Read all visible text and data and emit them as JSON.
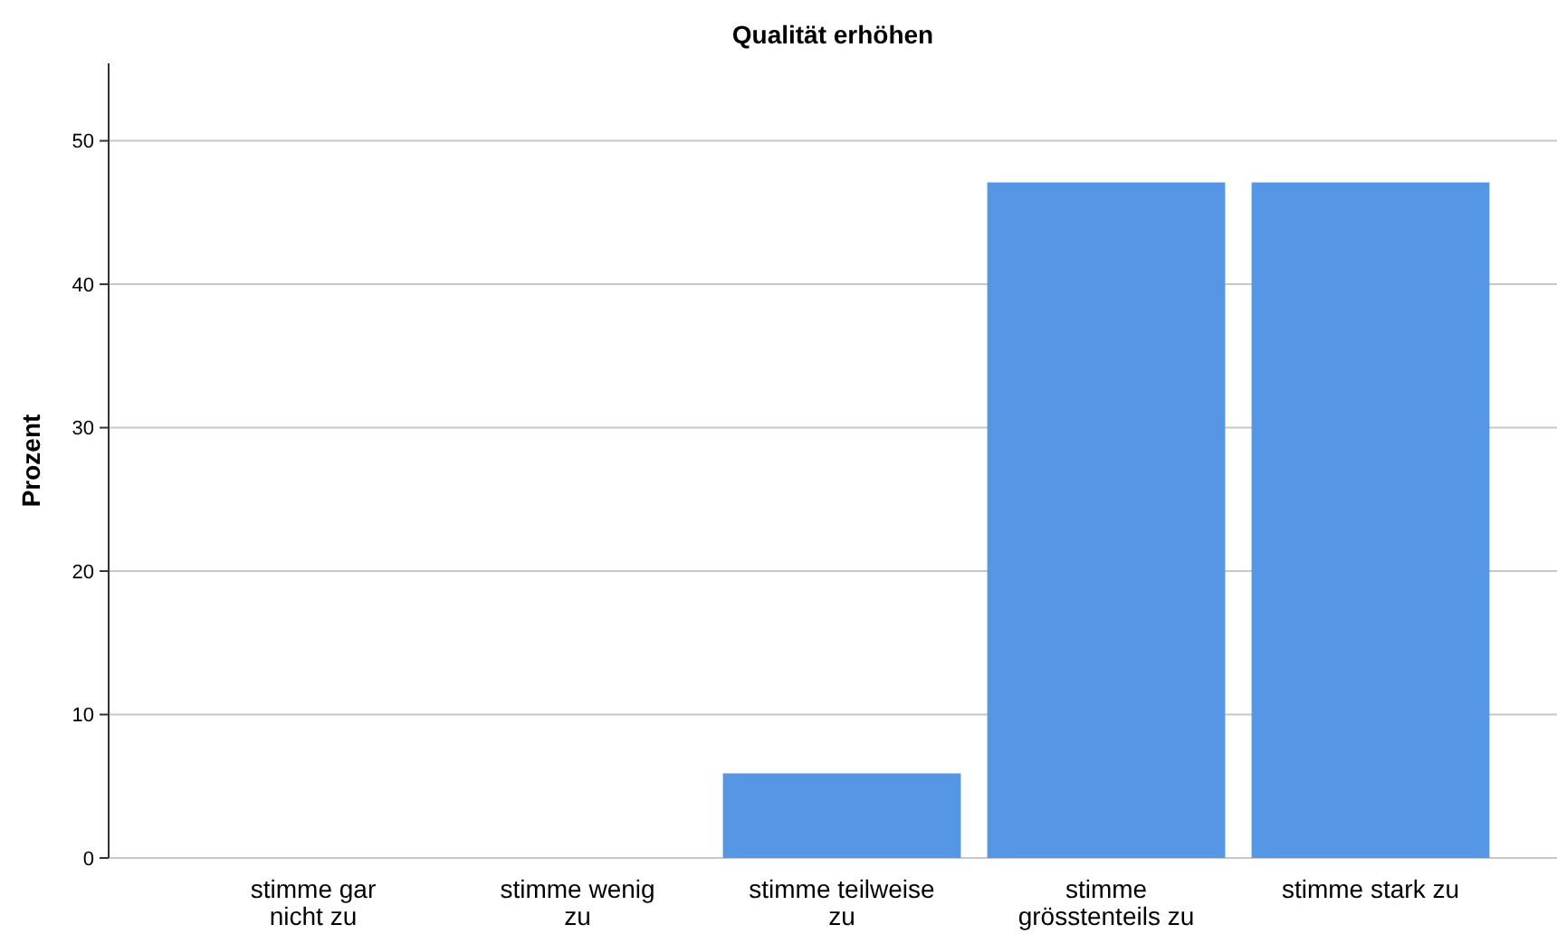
{
  "chart_data": {
    "type": "bar",
    "title": "Qualität erhöhen",
    "ylabel": "Prozent",
    "categories": [
      "stimme gar\nnicht zu",
      "stimme wenig\nzu",
      "stimme teilweise\nzu",
      "stimme\ngrösstenteils zu",
      "stimme stark zu"
    ],
    "values": [
      0,
      0,
      5.9,
      47.1,
      47.1
    ],
    "color": "#5597e5",
    "ylim": [
      0,
      55.4
    ],
    "yticks": [
      0,
      10,
      20,
      30,
      40,
      50
    ],
    "grid": "y"
  }
}
